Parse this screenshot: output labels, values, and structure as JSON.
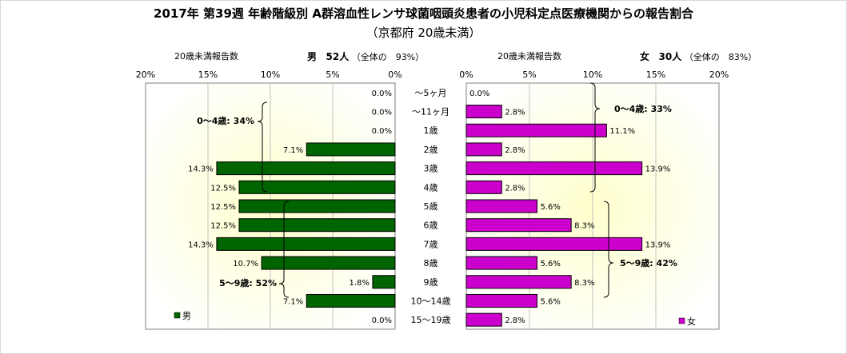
{
  "title": "2017年 第39週 年齢階級別 A群溶血性レンサ球菌咽頭炎患者の小児科定点医療機関からの報告割合",
  "subtitle": "（京都府 20歳未満）",
  "male": {
    "header_label": "20歳未満報告数",
    "sex_label": "男",
    "count": "52人",
    "share_text": "（全体の　93%）",
    "legend": "男",
    "color": "#006400",
    "bracket_labels": [
      "0～4歳: 34%",
      "5～9歳: 52%"
    ]
  },
  "female": {
    "header_label": "20歳未満報告数",
    "sex_label": "女",
    "count": "30人",
    "share_text": "（全体の　83%）",
    "legend": "女",
    "color": "#cc00cc",
    "bracket_labels": [
      "0～4歳: 33%",
      "5～9歳: 42%"
    ]
  },
  "chart_data": {
    "type": "bar",
    "orientation": "horizontal-butterfly",
    "categories": [
      "～5ヶ月",
      "～11ヶ月",
      "1歳",
      "2歳",
      "3歳",
      "4歳",
      "5歳",
      "6歳",
      "7歳",
      "8歳",
      "9歳",
      "10～14歳",
      "15～19歳"
    ],
    "series": [
      {
        "name": "男",
        "values": [
          0.0,
          0.0,
          0.0,
          7.1,
          14.3,
          12.5,
          12.5,
          12.5,
          14.3,
          10.7,
          1.8,
          7.1,
          0.0
        ],
        "labels": [
          "0.0%",
          "0.0%",
          "0.0%",
          "7.1%",
          "14.3%",
          "12.5%",
          "12.5%",
          "12.5%",
          "14.3%",
          "10.7%",
          "1.8%",
          "7.1%",
          "0.0%"
        ]
      },
      {
        "name": "女",
        "values": [
          0.0,
          2.8,
          11.1,
          2.8,
          13.9,
          2.8,
          5.6,
          8.3,
          13.9,
          5.6,
          8.3,
          5.6,
          2.8
        ],
        "labels": [
          "0.0%",
          "2.8%",
          "11.1%",
          "2.8%",
          "13.9%",
          "2.8%",
          "5.6%",
          "8.3%",
          "13.9%",
          "5.6%",
          "8.3%",
          "5.6%",
          "2.8%"
        ]
      }
    ],
    "left_axis_ticks": [
      "20%",
      "15%",
      "10%",
      "5%",
      "0%"
    ],
    "right_axis_ticks": [
      "0%",
      "5%",
      "10%",
      "15%",
      "20%"
    ],
    "xlim": [
      0,
      20
    ],
    "colors": {
      "plot_bg_center": "#ffffcc",
      "plot_bg_edge": "#ffffff",
      "gridline": "#c0c0c0"
    }
  }
}
